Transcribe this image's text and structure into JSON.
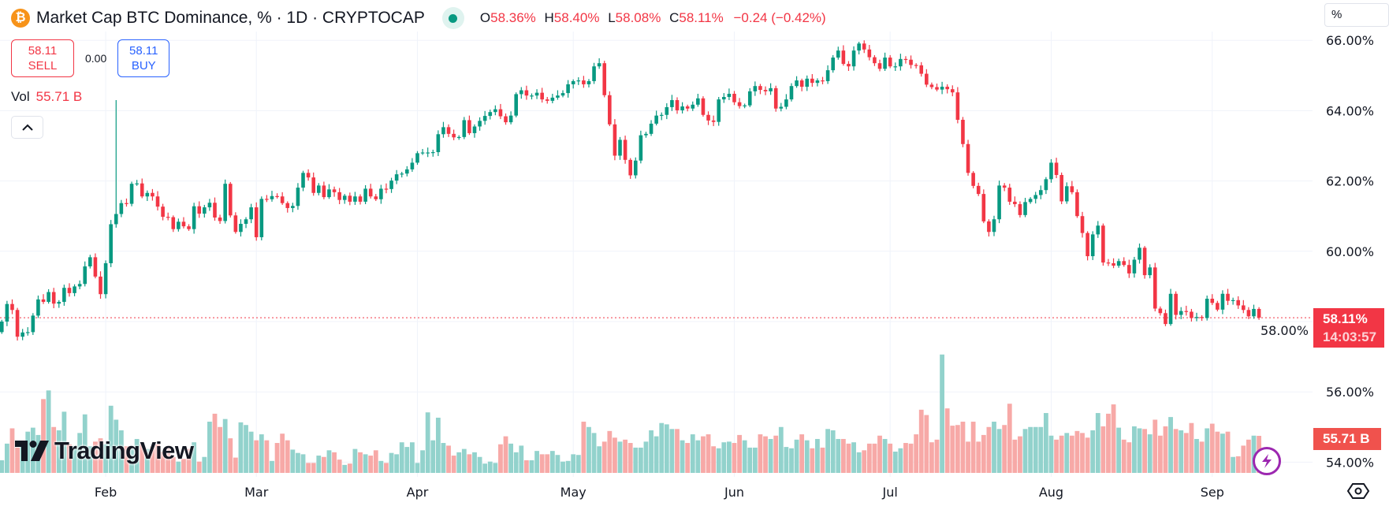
{
  "header": {
    "symbol_icon": "bitcoin-icon",
    "title": "Market Cap BTC Dominance, % · 1D · CRYPTOCAP",
    "status_icon": "market-open-dot-icon",
    "ohlc": {
      "o_label": "O",
      "o": "58.36%",
      "h_label": "H",
      "h": "58.40%",
      "l_label": "L",
      "l": "58.08%",
      "c_label": "C",
      "c": "58.11%",
      "change": "−0.24 (−0.42%)"
    }
  },
  "trade": {
    "sell_price": "58.11",
    "sell_label": "SELL",
    "spread": "0.00",
    "buy_price": "58.11",
    "buy_label": "BUY"
  },
  "volume_legend": {
    "label": "Vol",
    "value": "55.71 B"
  },
  "collapse_icon": "chevron-up-icon",
  "scale_mode": "%",
  "price_tag": {
    "value": "58.11%",
    "countdown": "14:03:57"
  },
  "volume_tag": "55.71 B",
  "logo": "TradingView",
  "colors": {
    "up": "#089981",
    "down": "#f23645",
    "up_volume": "#92d2cc",
    "down_volume": "#f7a9a7",
    "grid": "#f0f3fa",
    "last_price_line": "#f23645"
  },
  "chart_data": {
    "type": "candlestick",
    "interval": "1D",
    "yunit": "%",
    "ylim": [
      53.6,
      66.2
    ],
    "grid": true,
    "y_ticks": [
      {
        "value": 66,
        "label": "66.00%"
      },
      {
        "value": 64,
        "label": "64.00%"
      },
      {
        "value": 62,
        "label": "62.00%"
      },
      {
        "value": 60,
        "label": "60.00%"
      },
      {
        "value": 58,
        "label": "58.00%"
      },
      {
        "value": 56,
        "label": "56.00%"
      },
      {
        "value": 54,
        "label": "54.00%"
      }
    ],
    "x_ticks": [
      "Feb",
      "Mar",
      "Apr",
      "May",
      "Jun",
      "Jul",
      "Aug",
      "Sep"
    ],
    "last_price": 58.11,
    "first_open": 57.7,
    "close": [
      58.0,
      58.5,
      58.33,
      57.57,
      57.69,
      57.7,
      58.17,
      58.63,
      58.56,
      58.84,
      58.51,
      58.56,
      58.96,
      58.81,
      59.0,
      59.07,
      59.57,
      59.83,
      59.28,
      58.78,
      59.66,
      60.77,
      61.06,
      61.37,
      61.35,
      61.92,
      61.93,
      61.56,
      61.66,
      61.56,
      61.27,
      60.98,
      60.97,
      60.63,
      60.84,
      60.71,
      60.63,
      61.28,
      61.07,
      61.25,
      61.38,
      60.96,
      60.86,
      61.92,
      61.02,
      60.55,
      60.78,
      60.91,
      61.25,
      60.4,
      61.49,
      61.48,
      61.57,
      61.56,
      61.37,
      61.23,
      61.29,
      61.81,
      62.23,
      62.1,
      61.66,
      61.87,
      61.54,
      61.76,
      61.68,
      61.46,
      61.58,
      61.41,
      61.56,
      61.41,
      61.78,
      61.56,
      61.48,
      61.78,
      61.77,
      62.01,
      62.19,
      62.21,
      62.33,
      62.52,
      62.79,
      62.81,
      62.81,
      62.82,
      63.33,
      63.53,
      63.34,
      63.24,
      63.25,
      63.73,
      63.36,
      63.55,
      63.71,
      63.85,
      63.96,
      64.04,
      63.84,
      63.67,
      63.86,
      64.47,
      64.58,
      64.43,
      64.43,
      64.51,
      64.32,
      64.28,
      64.37,
      64.43,
      64.5,
      64.75,
      64.84,
      64.86,
      64.75,
      64.84,
      65.26,
      65.35,
      64.44,
      63.61,
      62.72,
      63.17,
      62.6,
      62.16,
      62.58,
      63.3,
      63.34,
      63.63,
      63.86,
      63.88,
      64.1,
      64.3,
      64.01,
      64.12,
      64.06,
      64.17,
      64.35,
      63.88,
      63.72,
      63.68,
      64.32,
      64.39,
      64.48,
      64.24,
      64.13,
      64.15,
      64.55,
      64.7,
      64.59,
      64.55,
      64.64,
      64.06,
      64.11,
      64.32,
      64.7,
      64.86,
      64.68,
      64.91,
      64.79,
      64.86,
      64.84,
      65.15,
      65.51,
      65.71,
      65.33,
      65.26,
      65.71,
      65.91,
      65.74,
      65.52,
      65.35,
      65.19,
      65.51,
      65.26,
      65.26,
      65.47,
      65.45,
      65.3,
      65.29,
      65.05,
      64.74,
      64.67,
      64.6,
      64.68,
      64.61,
      64.52,
      63.74,
      63.05,
      62.23,
      61.86,
      61.63,
      60.85,
      60.55,
      60.91,
      61.87,
      61.81,
      61.41,
      61.34,
      61.03,
      61.4,
      61.49,
      61.6,
      61.74,
      62.05,
      62.52,
      62.17,
      61.42,
      61.85,
      61.68,
      61.0,
      60.52,
      59.86,
      60.48,
      60.73,
      59.68,
      59.66,
      59.59,
      59.72,
      59.61,
      59.37,
      59.76,
      60.1,
      59.32,
      59.54,
      58.37,
      58.24,
      57.93,
      58.79,
      58.19,
      58.3,
      58.28,
      58.1,
      58.13,
      58.1,
      58.65,
      58.53,
      58.34,
      58.79,
      58.59,
      58.61,
      58.46,
      58.33,
      58.15,
      58.36,
      58.11
    ],
    "volume_unit": "B",
    "volume": [
      19,
      44,
      67,
      38,
      47,
      62,
      68,
      57,
      111,
      124,
      69,
      64,
      92,
      43,
      40,
      60,
      88,
      40,
      47,
      52,
      43,
      101,
      80,
      64,
      40,
      36,
      51,
      43,
      36,
      40,
      43,
      32,
      40,
      24,
      17,
      21,
      36,
      46,
      17,
      24,
      77,
      89,
      69,
      81,
      52,
      23,
      76,
      72,
      62,
      49,
      58,
      49,
      18,
      45,
      59,
      49,
      35,
      30,
      28,
      15,
      15,
      26,
      24,
      34,
      31,
      20,
      12,
      14,
      36,
      31,
      28,
      26,
      34,
      18,
      15,
      30,
      28,
      46,
      39,
      46,
      15,
      34,
      91,
      49,
      83,
      45,
      41,
      26,
      31,
      36,
      28,
      31,
      24,
      14,
      17,
      15,
      43,
      55,
      44,
      31,
      41,
      19,
      19,
      33,
      28,
      28,
      33,
      27,
      17,
      18,
      28,
      27,
      77,
      69,
      60,
      40,
      47,
      63,
      53,
      47,
      50,
      45,
      38,
      38,
      47,
      64,
      55,
      75,
      73,
      66,
      66,
      49,
      45,
      58,
      49,
      55,
      58,
      40,
      37,
      46,
      47,
      45,
      57,
      49,
      38,
      38,
      58,
      55,
      51,
      56,
      69,
      39,
      37,
      50,
      58,
      49,
      37,
      51,
      38,
      66,
      64,
      51,
      51,
      44,
      46,
      31,
      34,
      44,
      44,
      56,
      51,
      44,
      32,
      37,
      45,
      44,
      58,
      95,
      87,
      46,
      50,
      178,
      97,
      71,
      72,
      77,
      47,
      77,
      47,
      57,
      69,
      77,
      66,
      72,
      104,
      50,
      55,
      66,
      69,
      69,
      69,
      90,
      56,
      50,
      56,
      60,
      56,
      63,
      60,
      53,
      64,
      90,
      70,
      89,
      103,
      68,
      50,
      46,
      70,
      67,
      66,
      58,
      80,
      56,
      70,
      84,
      66,
      64,
      60,
      75,
      51,
      47,
      67,
      74,
      62,
      59,
      62,
      24,
      25,
      41,
      50,
      56,
      55.71
    ]
  }
}
